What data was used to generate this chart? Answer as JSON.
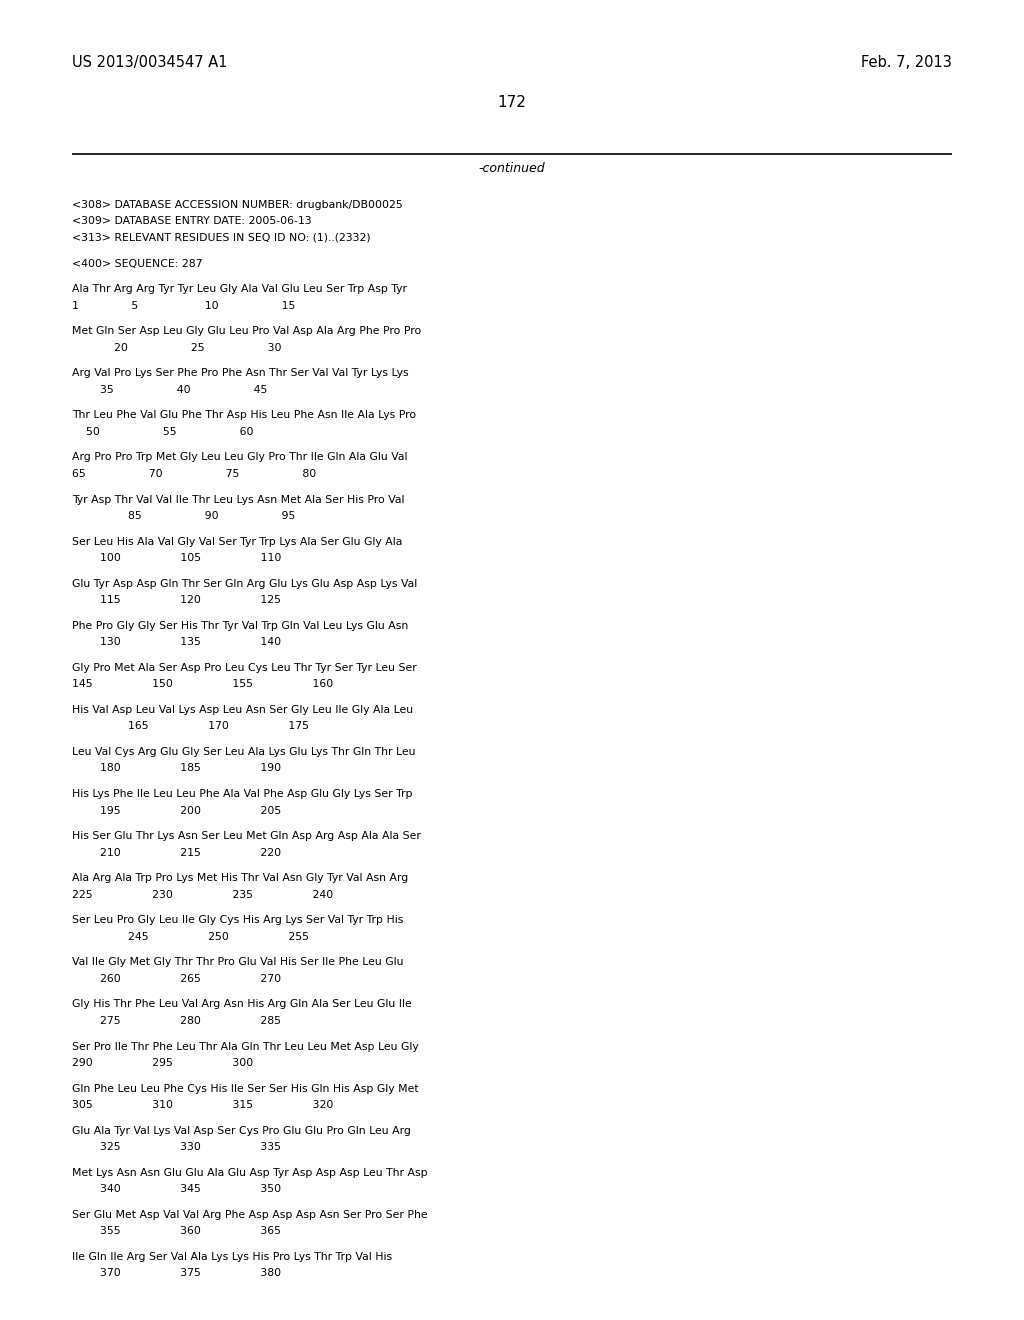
{
  "header_left": "US 2013/0034547 A1",
  "header_right": "Feb. 7, 2013",
  "page_number": "172",
  "continued": "-continued",
  "background_color": "#ffffff",
  "text_color": "#000000",
  "body_lines": [
    "<308> DATABASE ACCESSION NUMBER: drugbank/DB00025",
    "<309> DATABASE ENTRY DATE: 2005-06-13",
    "<313> RELEVANT RESIDUES IN SEQ ID NO: (1)..(2332)",
    "",
    "<400> SEQUENCE: 287",
    "",
    "Ala Thr Arg Arg Tyr Tyr Leu Gly Ala Val Glu Leu Ser Trp Asp Tyr",
    "1               5                   10                  15",
    "",
    "Met Gln Ser Asp Leu Gly Glu Leu Pro Val Asp Ala Arg Phe Pro Pro",
    "            20                  25                  30",
    "",
    "Arg Val Pro Lys Ser Phe Pro Phe Asn Thr Ser Val Val Tyr Lys Lys",
    "        35                  40                  45",
    "",
    "Thr Leu Phe Val Glu Phe Thr Asp His Leu Phe Asn Ile Ala Lys Pro",
    "    50                  55                  60",
    "",
    "Arg Pro Pro Trp Met Gly Leu Leu Gly Pro Thr Ile Gln Ala Glu Val",
    "65                  70                  75                  80",
    "",
    "Tyr Asp Thr Val Val Ile Thr Leu Lys Asn Met Ala Ser His Pro Val",
    "                85                  90                  95",
    "",
    "Ser Leu His Ala Val Gly Val Ser Tyr Trp Lys Ala Ser Glu Gly Ala",
    "        100                 105                 110",
    "",
    "Glu Tyr Asp Asp Gln Thr Ser Gln Arg Glu Lys Glu Asp Asp Lys Val",
    "        115                 120                 125",
    "",
    "Phe Pro Gly Gly Ser His Thr Tyr Val Trp Gln Val Leu Lys Glu Asn",
    "        130                 135                 140",
    "",
    "Gly Pro Met Ala Ser Asp Pro Leu Cys Leu Thr Tyr Ser Tyr Leu Ser",
    "145                 150                 155                 160",
    "",
    "His Val Asp Leu Val Lys Asp Leu Asn Ser Gly Leu Ile Gly Ala Leu",
    "                165                 170                 175",
    "",
    "Leu Val Cys Arg Glu Gly Ser Leu Ala Lys Glu Lys Thr Gln Thr Leu",
    "        180                 185                 190",
    "",
    "His Lys Phe Ile Leu Leu Phe Ala Val Phe Asp Glu Gly Lys Ser Trp",
    "        195                 200                 205",
    "",
    "His Ser Glu Thr Lys Asn Ser Leu Met Gln Asp Arg Asp Ala Ala Ser",
    "        210                 215                 220",
    "",
    "Ala Arg Ala Trp Pro Lys Met His Thr Val Asn Gly Tyr Val Asn Arg",
    "225                 230                 235                 240",
    "",
    "Ser Leu Pro Gly Leu Ile Gly Cys His Arg Lys Ser Val Tyr Trp His",
    "                245                 250                 255",
    "",
    "Val Ile Gly Met Gly Thr Thr Pro Glu Val His Ser Ile Phe Leu Glu",
    "        260                 265                 270",
    "",
    "Gly His Thr Phe Leu Val Arg Asn His Arg Gln Ala Ser Leu Glu Ile",
    "        275                 280                 285",
    "",
    "Ser Pro Ile Thr Phe Leu Thr Ala Gln Thr Leu Leu Met Asp Leu Gly",
    "290                 295                 300",
    "",
    "Gln Phe Leu Leu Phe Cys His Ile Ser Ser His Gln His Asp Gly Met",
    "305                 310                 315                 320",
    "",
    "Glu Ala Tyr Val Lys Val Asp Ser Cys Pro Glu Glu Pro Gln Leu Arg",
    "        325                 330                 335",
    "",
    "Met Lys Asn Asn Glu Glu Ala Glu Asp Tyr Asp Asp Asp Leu Thr Asp",
    "        340                 345                 350",
    "",
    "Ser Glu Met Asp Val Val Arg Phe Asp Asp Asp Asn Ser Pro Ser Phe",
    "        355                 360                 365",
    "",
    "Ile Gln Ile Arg Ser Val Ala Lys Lys His Pro Lys Thr Trp Val His",
    "        370                 375                 380"
  ]
}
